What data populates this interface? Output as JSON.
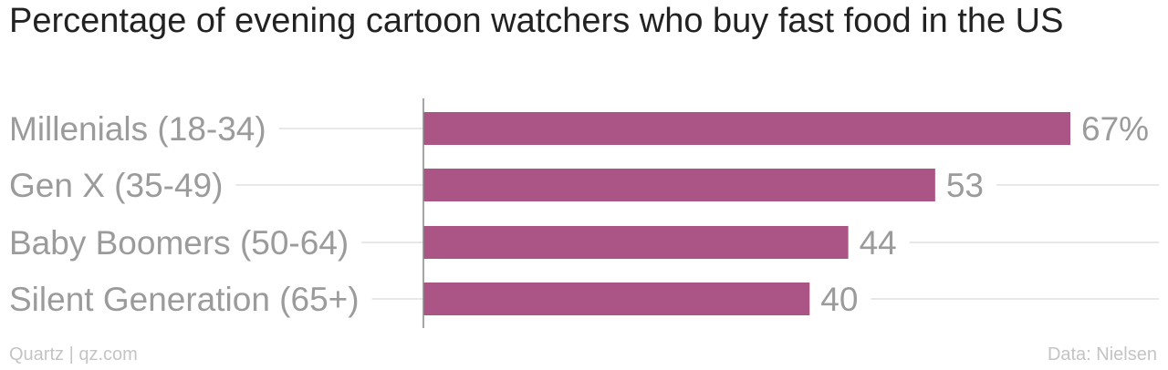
{
  "chart_data": {
    "type": "bar",
    "orientation": "horizontal",
    "title": "Percentage of evening cartoon watchers who buy fast food in the US",
    "categories": [
      "Millenials (18-34)",
      "Gen X (35-49)",
      "Baby Boomers (50-64)",
      "Silent Generation (65+)"
    ],
    "values": [
      67,
      53,
      44,
      40
    ],
    "value_labels": [
      "67%",
      "53",
      "44",
      "40"
    ],
    "unit": "%",
    "xlim": [
      0,
      67
    ],
    "grid": true,
    "legend": "none"
  },
  "footer": {
    "source_left": "Quartz | qz.com",
    "source_right": "Data: Nielsen"
  },
  "colors": {
    "bar": "#ab5586",
    "category_label": "#9b9b9b",
    "value_label": "#9b9b9b",
    "gridline": "#e8e8e8",
    "axis": "#888888",
    "title": "#222222",
    "footer": "#c4c4c4"
  }
}
